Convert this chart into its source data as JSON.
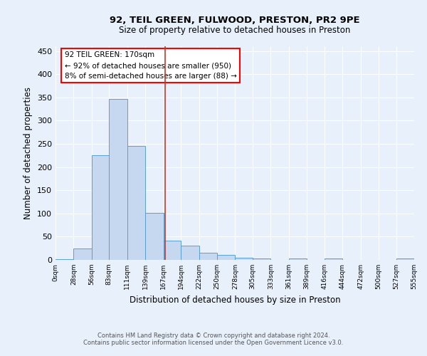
{
  "title": "92, TEIL GREEN, FULWOOD, PRESTON, PR2 9PE",
  "subtitle": "Size of property relative to detached houses in Preston",
  "xlabel": "Distribution of detached houses by size in Preston",
  "ylabel": "Number of detached properties",
  "footer_line1": "Contains HM Land Registry data © Crown copyright and database right 2024.",
  "footer_line2": "Contains public sector information licensed under the Open Government Licence v3.0.",
  "annotation_line1": "92 TEIL GREEN: 170sqm",
  "annotation_line2": "← 92% of detached houses are smaller (950)",
  "annotation_line3": "8% of semi-detached houses are larger (88) →",
  "property_size": 170,
  "bin_edges": [
    0,
    28,
    56,
    83,
    111,
    139,
    167,
    194,
    222,
    250,
    278,
    305,
    333,
    361,
    389,
    416,
    444,
    472,
    500,
    527,
    555
  ],
  "bin_labels": [
    "0sqm",
    "28sqm",
    "56sqm",
    "83sqm",
    "111sqm",
    "139sqm",
    "167sqm",
    "194sqm",
    "222sqm",
    "250sqm",
    "278sqm",
    "305sqm",
    "333sqm",
    "361sqm",
    "389sqm",
    "416sqm",
    "444sqm",
    "472sqm",
    "500sqm",
    "527sqm",
    "555sqm"
  ],
  "counts": [
    2,
    25,
    226,
    346,
    246,
    101,
    42,
    30,
    15,
    10,
    4,
    3,
    0,
    3,
    0,
    3,
    0,
    0,
    0,
    3
  ],
  "bar_color": "#c5d8f0",
  "bar_edge_color": "#5a9fd4",
  "vline_color": "#c0392b",
  "bg_color": "#e8f0fb",
  "grid_color": "#ffffff",
  "ylim": [
    0,
    460
  ],
  "yticks": [
    0,
    50,
    100,
    150,
    200,
    250,
    300,
    350,
    400,
    450
  ]
}
